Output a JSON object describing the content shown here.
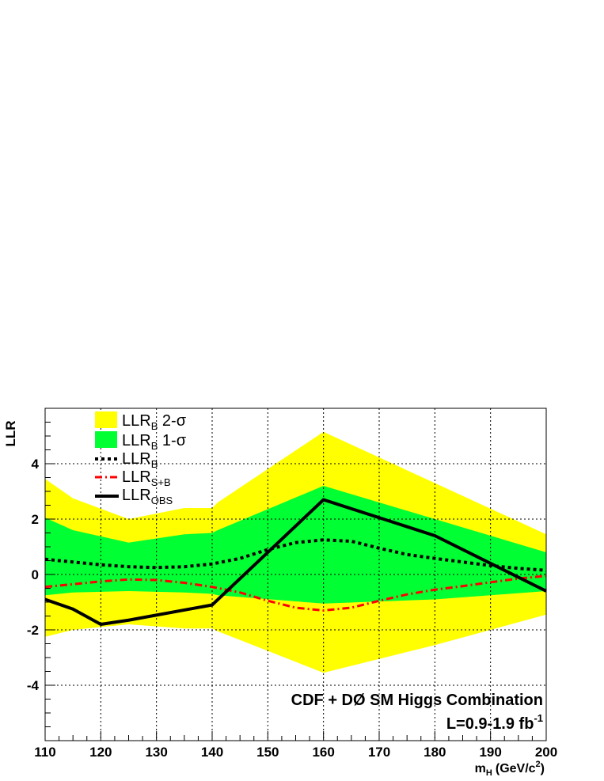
{
  "chart_data": {
    "type": "line",
    "title": "",
    "xlabel": "m",
    "xlabel_sub": "H",
    "xlabel_unit": "(GeV/c",
    "xlabel_unit_sup": "2",
    "xlabel_unit_close": ")",
    "ylabel": "LLR",
    "xlim": [
      110,
      200
    ],
    "ylim": [
      -6,
      6
    ],
    "grid": true,
    "legend_placement": "top-left",
    "xticks": [
      110,
      120,
      130,
      140,
      150,
      160,
      170,
      180,
      190,
      200
    ],
    "xtick_labels": [
      "110",
      "120",
      "130",
      "140",
      "150",
      "160",
      "170",
      "180",
      "190",
      "200"
    ],
    "yticks": [
      -4,
      -2,
      0,
      2,
      4
    ],
    "ytick_labels": [
      "-4",
      "-2",
      "0",
      "2",
      "4"
    ],
    "band_2sigma": {
      "name": "LLR",
      "name_sub": "B",
      "name_suffix": " 2-σ",
      "color": "#ffff00",
      "x": [
        110,
        115,
        125,
        135,
        140,
        141,
        160,
        180,
        200
      ],
      "upper": [
        3.45,
        2.75,
        2.0,
        2.4,
        2.4,
        2.6,
        5.15,
        3.3,
        1.45
      ],
      "lower": [
        -2.25,
        -2.0,
        -1.8,
        -1.95,
        -1.95,
        -2.05,
        -3.55,
        -2.55,
        -1.45
      ]
    },
    "band_1sigma": {
      "name": "LLR",
      "name_sub": "B",
      "name_suffix": " 1-σ",
      "color": "#00ff33",
      "x": [
        110,
        115,
        125,
        135,
        140,
        141,
        160,
        180,
        200
      ],
      "upper": [
        2.05,
        1.6,
        1.15,
        1.45,
        1.5,
        1.6,
        3.2,
        2.0,
        0.8
      ],
      "lower": [
        -0.75,
        -0.65,
        -0.6,
        -0.65,
        -0.7,
        -0.75,
        -1.05,
        -0.9,
        -0.6
      ]
    },
    "series": [
      {
        "name": "LLR",
        "name_sub": "B",
        "style": "dotted",
        "color": "#000000",
        "x": [
          110,
          115,
          120,
          125,
          130,
          135,
          140,
          145,
          150,
          155,
          160,
          165,
          170,
          175,
          180,
          185,
          190,
          195,
          200
        ],
        "y": [
          0.55,
          0.45,
          0.35,
          0.28,
          0.25,
          0.28,
          0.38,
          0.58,
          0.9,
          1.15,
          1.25,
          1.2,
          0.95,
          0.72,
          0.58,
          0.45,
          0.32,
          0.22,
          0.15
        ]
      },
      {
        "name": "LLR",
        "name_sub": "S+B",
        "style": "dash-dot",
        "color": "#ff0000",
        "x": [
          110,
          115,
          120,
          125,
          130,
          135,
          140,
          145,
          150,
          155,
          160,
          165,
          170,
          175,
          180,
          185,
          190,
          195,
          200
        ],
        "y": [
          -0.45,
          -0.35,
          -0.25,
          -0.18,
          -0.2,
          -0.3,
          -0.45,
          -0.65,
          -0.95,
          -1.2,
          -1.3,
          -1.2,
          -0.95,
          -0.72,
          -0.55,
          -0.42,
          -0.28,
          -0.15,
          -0.05
        ]
      },
      {
        "name": "LLR",
        "name_sub": "OBS",
        "style": "solid",
        "color": "#000000",
        "x": [
          110,
          115,
          120,
          125,
          140,
          160,
          180,
          200
        ],
        "y": [
          -0.9,
          -1.25,
          -1.8,
          -1.65,
          -1.1,
          2.7,
          1.4,
          -0.6
        ]
      }
    ],
    "annotations": [
      {
        "text": "CDF + DØ SM Higgs Combination"
      },
      {
        "text": "L=0.9-1.9 fb",
        "sup": "-1"
      }
    ]
  }
}
